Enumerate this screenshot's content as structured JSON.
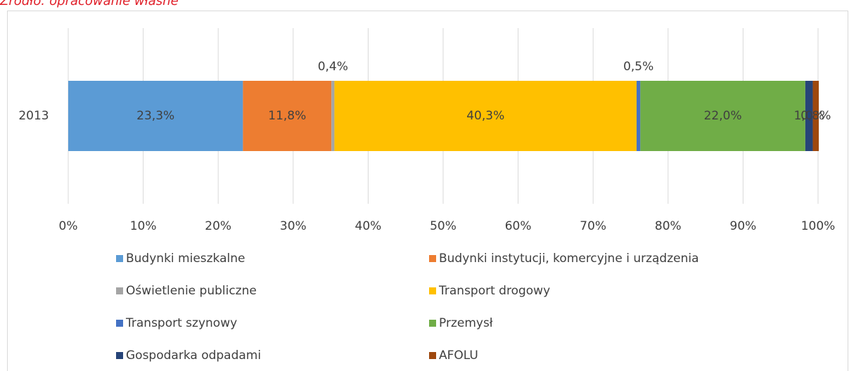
{
  "chart_data": {
    "type": "stacked_bar_horizontal",
    "source_note": "Źródło: opracowanie własne",
    "categories": [
      "2013"
    ],
    "series": [
      {
        "name": "Budynki mieszkalne",
        "color": "#5b9bd5",
        "values": [
          23.3
        ],
        "value_labels": [
          "23,3%"
        ]
      },
      {
        "name": "Budynki instytucji, komercyjne i urządzenia",
        "color": "#ed7d31",
        "values": [
          11.8
        ],
        "value_labels": [
          "11,8%"
        ]
      },
      {
        "name": "Oświetlenie publiczne",
        "color": "#a5a5a5",
        "values": [
          0.4
        ],
        "value_labels": [
          "0,4%"
        ]
      },
      {
        "name": "Transport drogowy",
        "color": "#ffc000",
        "values": [
          40.3
        ],
        "value_labels": [
          "40,3%"
        ]
      },
      {
        "name": "Transport szynowy",
        "color": "#4472c4",
        "values": [
          0.5
        ],
        "value_labels": [
          "0,5%"
        ]
      },
      {
        "name": "Przemysł",
        "color": "#70ad47",
        "values": [
          22.0
        ],
        "value_labels": [
          "22,0%"
        ]
      },
      {
        "name": "Gospodarka odpadami",
        "color": "#264478",
        "values": [
          1.0
        ],
        "value_labels": [
          "1,0%"
        ]
      },
      {
        "name": "AFOLU",
        "color": "#9e480e",
        "values": [
          0.8
        ],
        "value_labels": [
          "0,8%"
        ]
      }
    ],
    "xlim": [
      0,
      100
    ],
    "xticks": [
      {
        "value": 0,
        "label": "0%"
      },
      {
        "value": 10,
        "label": "10%"
      },
      {
        "value": 20,
        "label": "20%"
      },
      {
        "value": 30,
        "label": "30%"
      },
      {
        "value": 40,
        "label": "40%"
      },
      {
        "value": 50,
        "label": "50%"
      },
      {
        "value": 60,
        "label": "60%"
      },
      {
        "value": 70,
        "label": "70%"
      },
      {
        "value": 80,
        "label": "80%"
      },
      {
        "value": 90,
        "label": "90%"
      },
      {
        "value": 100,
        "label": "100%"
      }
    ],
    "grid": true,
    "legend": "bottom"
  }
}
